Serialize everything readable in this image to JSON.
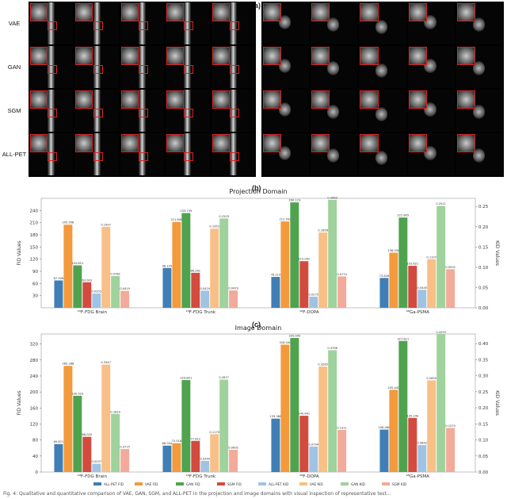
{
  "panel_a": {
    "label": "(a)",
    "rows": [
      "VAE",
      "GAN",
      "SGM",
      "ALL-PET"
    ]
  },
  "chart_data": [
    {
      "panel_label": "(b)",
      "type": "bar",
      "title": "Projection Domain",
      "ylabel_left": "FID Values",
      "ylabel_right": "KID Values",
      "left_ticks": [
        "30",
        "60",
        "90",
        "120",
        "150",
        "180",
        "210",
        "240"
      ],
      "right_ticks": [
        "0.00",
        "0.05",
        "0.10",
        "0.15",
        "0.20",
        "0.25"
      ],
      "ylim_fid": [
        0,
        270
      ],
      "ylim_kid": [
        0,
        0.27
      ],
      "categories": [
        "18F-FDG Brain",
        "18F-FDG Trunk",
        "18F-DOPA",
        "68Ga-PSMA"
      ],
      "category_labels": [
        "¹⁸F-FDG Brain",
        "¹⁸F-FDG Trunk",
        "¹⁸F-DOPA",
        "⁶⁸Ga-PSMA"
      ],
      "series": [
        {
          "name": "ALL-PET FID",
          "axis": "fid",
          "color": "#3f7fb5",
          "values": [
            67.5,
            98.1,
            76.2,
            73.6
          ],
          "labels": [
            "67.506",
            "98.105",
            "76.219",
            "73.626"
          ]
        },
        {
          "name": "VAE FID",
          "axis": "fid",
          "color": "#f39a3c",
          "values": [
            205.0,
            211.8,
            213.0,
            136.0
          ],
          "labels": [
            "205.008",
            "211.846",
            "212.993",
            "136.034"
          ]
        },
        {
          "name": "GAN FID",
          "axis": "fid",
          "color": "#4fa34f",
          "values": [
            104.7,
            233.7,
            260.0,
            222.6
          ],
          "labels": [
            "104.651",
            "233.739",
            "260.123",
            "222.605"
          ]
        },
        {
          "name": "SGM FID",
          "axis": "fid",
          "color": "#d34a3f",
          "values": [
            63.0,
            86.3,
            115.0,
            103.6
          ],
          "labels": [
            "63.003",
            "86.261",
            "115.042",
            "103.621"
          ]
        },
        {
          "name": "ALL-PET KID",
          "axis": "kid",
          "color": "#9fc3e3",
          "values": [
            0.0352,
            0.0424,
            0.0275,
            0.0445
          ],
          "labels": [
            "0.0352",
            "0.0424",
            "0.0275",
            "0.0445"
          ]
        },
        {
          "name": "VAE KID",
          "axis": "kid",
          "color": "#f8bf86",
          "values": [
            0.1997,
            0.1952,
            0.1858,
            0.1197
          ],
          "labels": [
            "0.1997",
            "0.1952",
            "0.1858",
            "0.1197"
          ]
        },
        {
          "name": "GAN KID",
          "axis": "kid",
          "color": "#9fd29c",
          "values": [
            0.0782,
            0.2203,
            0.2663,
            0.2511
          ],
          "labels": [
            "0.0782",
            "0.2203",
            "0.2663",
            "0.2511"
          ]
        },
        {
          "name": "SGM KID",
          "axis": "kid",
          "color": "#f3aa9b",
          "values": [
            0.0419,
            0.0429,
            0.0774,
            0.0952
          ],
          "labels": [
            "0.0419",
            "0.0429",
            "0.0774",
            "0.0952"
          ]
        }
      ]
    },
    {
      "panel_label": "(c)",
      "type": "bar",
      "title": "Image Domain",
      "ylabel_left": "FID Values",
      "ylabel_right": "KID Values",
      "left_ticks": [
        "0",
        "40",
        "80",
        "120",
        "160",
        "200",
        "240",
        "280",
        "320"
      ],
      "right_ticks": [
        "0.00",
        "0.05",
        "0.10",
        "0.15",
        "0.20",
        "0.25",
        "0.30",
        "0.35",
        "0.40"
      ],
      "ylim_fid": [
        0,
        345
      ],
      "ylim_kid": [
        0,
        0.43
      ],
      "categories": [
        "18F-FDG Brain",
        "18F-FDG Trunk",
        "18F-DOPA",
        "68Ga-PSMA"
      ],
      "category_labels": [
        "¹⁸F-FDG Brain",
        "¹⁸F-FDG Trunk",
        "¹⁸F-DOPA",
        "⁶⁸Ga-PSMA"
      ],
      "series": [
        {
          "name": "ALL-PET FID",
          "axis": "fid",
          "color": "#3f7fb5",
          "values": [
            69.9,
            66.0,
            133.4,
            106.1
          ],
          "labels": [
            "69.871",
            "66.044",
            "133.366",
            "106.066"
          ]
        },
        {
          "name": "VAE FID",
          "axis": "fid",
          "color": "#f39a3c",
          "values": [
            265.3,
            72.0,
            318.4,
            205.4
          ],
          "labels": [
            "265.288",
            "72.018",
            "318.440",
            "205.440"
          ]
        },
        {
          "name": "GAN FID",
          "axis": "fid",
          "color": "#4fa34f",
          "values": [
            190.5,
            229.8,
            335.0,
            327.6
          ],
          "labels": [
            "190.520",
            "229.801",
            "335.000",
            "327.621"
          ]
        },
        {
          "name": "SGM FID",
          "axis": "fid",
          "color": "#d34a3f",
          "values": [
            88.0,
            77.8,
            140.6,
            135.2
          ],
          "labels": [
            "88.020",
            "77.812",
            "140.641",
            "135.240"
          ]
        },
        {
          "name": "ALL-PET KID",
          "axis": "kid",
          "color": "#9fc3e3",
          "values": [
            0.0257,
            0.0349,
            0.0794,
            0.0842
          ],
          "labels": [
            "0.0257",
            "0.0349",
            "0.0794",
            "0.0842"
          ]
        },
        {
          "name": "VAE KID",
          "axis": "kid",
          "color": "#f8bf86",
          "values": [
            0.3347,
            0.1179,
            0.3285,
            0.2855
          ],
          "labels": [
            "0.3347",
            "0.1179",
            "0.3285",
            "0.2855"
          ]
        },
        {
          "name": "GAN KID",
          "axis": "kid",
          "color": "#9fd29c",
          "values": [
            0.181,
            0.2877,
            0.3796,
            0.4293
          ],
          "labels": [
            "0.1810",
            "0.2877",
            "0.3796",
            "0.4293"
          ]
        },
        {
          "name": "SGM KID",
          "axis": "kid",
          "color": "#f3aa9b",
          "values": [
            0.0715,
            0.0692,
            0.1311,
            0.1375
          ],
          "labels": [
            "0.0715",
            "0.0692",
            "0.1311",
            "0.1375"
          ]
        }
      ],
      "legend": [
        "ALL-PET FID",
        "VAE FID",
        "GAN FID",
        "SGM FID",
        "ALL-PET KID",
        "VAE KID",
        "GAN KID",
        "SGM KID"
      ]
    }
  ],
  "caption": "Fig. 4: Qualitative and quantitative comparison of VAE, GAN, SGM, and ALL-PET in the projection and image domains with visual inspection of representative test..."
}
